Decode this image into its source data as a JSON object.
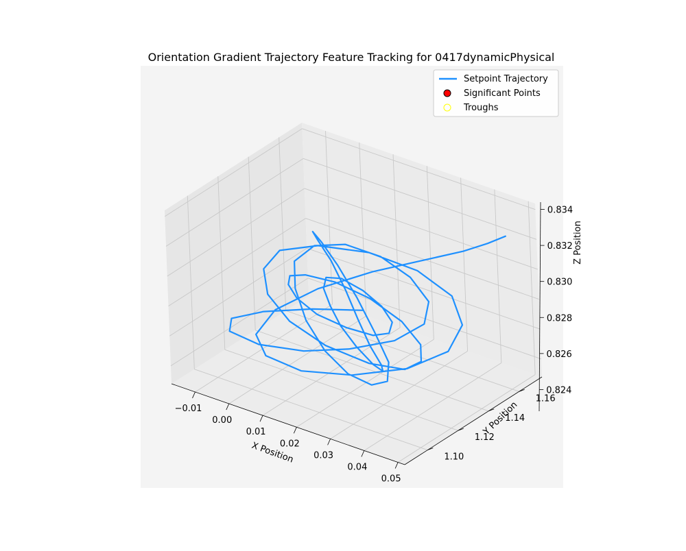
{
  "chart_data": {
    "type": "line",
    "projection": "3d",
    "title": "Orientation Gradient Trajectory Feature Tracking for 0417dynamicPhysical",
    "xlabel": "X Position",
    "ylabel": "Y Position",
    "zlabel": "Z Position",
    "xlim": [
      -0.017,
      0.052
    ],
    "ylim": [
      1.085,
      1.175
    ],
    "zlim": [
      0.8228,
      0.8344
    ],
    "x_ticks": [
      "−0.01",
      "0.00",
      "0.01",
      "0.02",
      "0.03",
      "0.04",
      "0.05"
    ],
    "y_ticks": [
      "1.10",
      "1.12",
      "1.14",
      "1.16"
    ],
    "z_ticks": [
      "0.824",
      "0.826",
      "0.828",
      "0.830",
      "0.832",
      "0.834"
    ],
    "grid": true,
    "legend_position": "top-right",
    "colors": {
      "trajectory": "#1e90ff",
      "significant": "#ff0000",
      "troughs": "#ffff00",
      "pane": "#ebebeb",
      "panel_bg": "#f4f4f4"
    },
    "legend": [
      {
        "label": "Setpoint Trajectory",
        "kind": "line"
      },
      {
        "label": "Significant Points",
        "kind": "marker-filled"
      },
      {
        "label": "Troughs",
        "kind": "marker-hollow"
      }
    ],
    "series": [
      {
        "name": "Setpoint Trajectory",
        "x": [
          0.018,
          0.006,
          -0.004,
          -0.009,
          -0.006,
          0.004,
          0.016,
          0.026,
          0.034,
          0.037,
          0.033,
          0.024,
          0.013,
          0.003,
          -0.003,
          -0.004,
          0.002,
          0.011,
          0.021,
          0.03,
          0.036,
          0.037,
          0.032,
          0.022,
          0.011,
          0.001,
          -0.006,
          -0.008,
          -0.003,
          0.007,
          0.018,
          0.028,
          0.036,
          0.041,
          0.04,
          0.033,
          0.022,
          0.011,
          0.002,
          -0.004,
          -0.005,
          0.001,
          0.012,
          0.024,
          0.034,
          0.039,
          0.038,
          0.031,
          0.02,
          0.009,
          0.0,
          -0.006,
          -0.007,
          -0.002,
          0.008,
          0.02,
          0.031,
          0.038,
          0.04,
          0.035,
          0.025,
          0.014,
          0.004,
          -0.003,
          -0.005,
          0.0,
          0.01,
          0.022,
          0.033,
          0.04,
          0.042,
          0.037,
          0.027,
          0.016,
          0.006,
          0.0,
          0.0,
          0.006,
          0.016,
          0.027,
          0.036,
          0.042,
          0.046
        ],
        "y": [
          1.135,
          1.128,
          1.118,
          1.108,
          1.1,
          1.097,
          1.1,
          1.108,
          1.12,
          1.133,
          1.145,
          1.153,
          1.158,
          1.157,
          1.15,
          1.139,
          1.126,
          1.113,
          1.103,
          1.098,
          1.1,
          1.108,
          1.12,
          1.133,
          1.146,
          1.156,
          1.161,
          1.16,
          1.152,
          1.139,
          1.124,
          1.11,
          1.1,
          1.096,
          1.099,
          1.108,
          1.121,
          1.135,
          1.148,
          1.157,
          1.161,
          1.158,
          1.148,
          1.134,
          1.119,
          1.106,
          1.098,
          1.096,
          1.101,
          1.112,
          1.126,
          1.14,
          1.152,
          1.16,
          1.161,
          1.155,
          1.143,
          1.128,
          1.113,
          1.101,
          1.095,
          1.096,
          1.104,
          1.117,
          1.132,
          1.146,
          1.157,
          1.162,
          1.16,
          1.151,
          1.137,
          1.121,
          1.107,
          1.098,
          1.097,
          1.104,
          1.117,
          1.132,
          1.146,
          1.156,
          1.162,
          1.165,
          1.168
        ],
        "z": [
          0.8272,
          0.8268,
          0.8265,
          0.8263,
          0.8262,
          0.8263,
          0.8266,
          0.827,
          0.8274,
          0.8279,
          0.8283,
          0.8287,
          0.8289,
          0.829,
          0.8289,
          0.8285,
          0.828,
          0.8274,
          0.8268,
          0.8263,
          0.8259,
          0.8257,
          0.8258,
          0.8262,
          0.8268,
          0.8275,
          0.8282,
          0.8288,
          0.8292,
          0.8294,
          0.8293,
          0.829,
          0.8285,
          0.8279,
          0.8272,
          0.8265,
          0.826,
          0.8256,
          0.8254,
          0.8255,
          0.8259,
          0.8265,
          0.8272,
          0.828,
          0.8287,
          0.8292,
          0.8295,
          0.8296,
          0.8293,
          0.8288,
          0.8281,
          0.8273,
          0.8265,
          0.8259,
          0.8255,
          0.8253,
          0.8254,
          0.8258,
          0.8264,
          0.8272,
          0.828,
          0.8287,
          0.8292,
          0.8295,
          0.8296,
          0.8294,
          0.829,
          0.8284,
          0.8277,
          0.8269,
          0.8262,
          0.8257,
          0.8254,
          0.8254,
          0.8257,
          0.8262,
          0.827,
          0.8279,
          0.8289,
          0.8299,
          0.8308,
          0.8316,
          0.8322
        ]
      }
    ]
  }
}
